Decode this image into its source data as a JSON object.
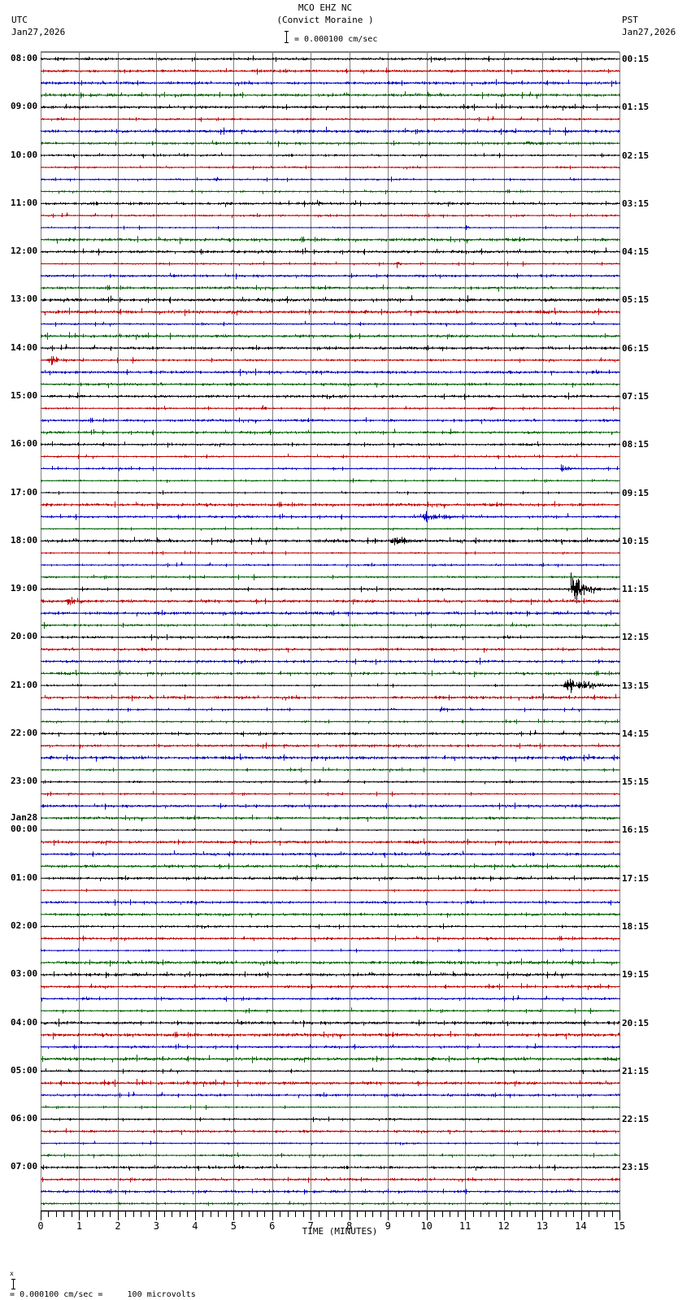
{
  "header": {
    "station": "MCO EHZ NC",
    "location": "(Convict Moraine )",
    "scale_text": "= 0.000100 cm/sec",
    "left_timezone": "UTC",
    "left_date": "Jan27,2026",
    "right_timezone": "PST",
    "right_date": "Jan27,2026"
  },
  "footer": {
    "scale_text": "= 0.000100 cm/sec =     100 microvolts",
    "prefix": "x"
  },
  "colors": {
    "trace_cycle": [
      "#000000",
      "#c00000",
      "#0000c0",
      "#006000"
    ],
    "gridline": "#808080",
    "axis": "#000000"
  },
  "chart_data": {
    "type": "line",
    "title": "MCO EHZ NC (Convict Moraine ) — helicorder, Jan27,2026",
    "xlabel": "TIME (MINUTES)",
    "ylabel": "",
    "x_range": [
      0,
      15
    ],
    "x_ticks": [
      "0",
      "1",
      "2",
      "3",
      "4",
      "5",
      "6",
      "7",
      "8",
      "9",
      "10",
      "11",
      "12",
      "13",
      "14",
      "15"
    ],
    "minor_ticks_per_minute": 4,
    "grid": true,
    "traces_per_hour": 4,
    "minutes_per_trace": 15,
    "trace_count": 96,
    "amplitude_scale": "0.000100 cm/sec = 100 microvolts",
    "left_labels": [
      {
        "row": 0,
        "text": "08:00"
      },
      {
        "row": 4,
        "text": "09:00"
      },
      {
        "row": 8,
        "text": "10:00"
      },
      {
        "row": 12,
        "text": "11:00"
      },
      {
        "row": 16,
        "text": "12:00"
      },
      {
        "row": 20,
        "text": "13:00"
      },
      {
        "row": 24,
        "text": "14:00"
      },
      {
        "row": 28,
        "text": "15:00"
      },
      {
        "row": 32,
        "text": "16:00"
      },
      {
        "row": 36,
        "text": "17:00"
      },
      {
        "row": 40,
        "text": "18:00"
      },
      {
        "row": 44,
        "text": "19:00"
      },
      {
        "row": 48,
        "text": "20:00"
      },
      {
        "row": 52,
        "text": "21:00"
      },
      {
        "row": 56,
        "text": "22:00"
      },
      {
        "row": 60,
        "text": "23:00"
      },
      {
        "row": 64,
        "text": "00:00",
        "date": "Jan28"
      },
      {
        "row": 68,
        "text": "01:00"
      },
      {
        "row": 72,
        "text": "02:00"
      },
      {
        "row": 76,
        "text": "03:00"
      },
      {
        "row": 80,
        "text": "04:00"
      },
      {
        "row": 84,
        "text": "05:00"
      },
      {
        "row": 88,
        "text": "06:00"
      },
      {
        "row": 92,
        "text": "07:00"
      }
    ],
    "right_labels": [
      {
        "row": 0,
        "text": "00:15"
      },
      {
        "row": 4,
        "text": "01:15"
      },
      {
        "row": 8,
        "text": "02:15"
      },
      {
        "row": 12,
        "text": "03:15"
      },
      {
        "row": 16,
        "text": "04:15"
      },
      {
        "row": 20,
        "text": "05:15"
      },
      {
        "row": 24,
        "text": "06:15"
      },
      {
        "row": 28,
        "text": "07:15"
      },
      {
        "row": 32,
        "text": "08:15"
      },
      {
        "row": 36,
        "text": "09:15"
      },
      {
        "row": 40,
        "text": "10:15"
      },
      {
        "row": 44,
        "text": "11:15"
      },
      {
        "row": 48,
        "text": "12:15"
      },
      {
        "row": 52,
        "text": "13:15"
      },
      {
        "row": 56,
        "text": "14:15"
      },
      {
        "row": 60,
        "text": "15:15"
      },
      {
        "row": 64,
        "text": "16:15"
      },
      {
        "row": 68,
        "text": "17:15"
      },
      {
        "row": 72,
        "text": "18:15"
      },
      {
        "row": 76,
        "text": "19:15"
      },
      {
        "row": 80,
        "text": "20:15"
      },
      {
        "row": 84,
        "text": "21:15"
      },
      {
        "row": 88,
        "text": "22:15"
      },
      {
        "row": 92,
        "text": "23:15"
      }
    ],
    "events": [
      {
        "row": 25,
        "minute": 0.15,
        "duration": 0.6,
        "amplitude": 10
      },
      {
        "row": 38,
        "minute": 9.7,
        "duration": 1.6,
        "amplitude": 7
      },
      {
        "row": 40,
        "minute": 9.0,
        "duration": 1.2,
        "amplitude": 7
      },
      {
        "row": 40,
        "minute": 7.2,
        "duration": 3.0,
        "amplitude": 3
      },
      {
        "row": 34,
        "minute": 13.4,
        "duration": 0.7,
        "amplitude": 6
      },
      {
        "row": 44,
        "minute": 13.65,
        "duration": 0.9,
        "amplitude": 30
      },
      {
        "row": 45,
        "minute": 0.6,
        "duration": 0.9,
        "amplitude": 8
      },
      {
        "row": 52,
        "minute": 13.5,
        "duration": 1.6,
        "amplitude": 12
      },
      {
        "row": 54,
        "minute": 10.3,
        "duration": 0.5,
        "amplitude": 5
      },
      {
        "row": 57,
        "minute": 8.3,
        "duration": 1.2,
        "amplitude": 3
      },
      {
        "row": 58,
        "minute": 13.4,
        "duration": 0.7,
        "amplitude": 6
      },
      {
        "row": 58,
        "minute": 14.1,
        "duration": 0.5,
        "amplitude": 5
      },
      {
        "row": 7,
        "minute": 12.2,
        "duration": 2.8,
        "amplitude": 3
      },
      {
        "row": 12,
        "minute": 7.0,
        "duration": 1.2,
        "amplitude": 3
      },
      {
        "row": 14,
        "minute": 11.0,
        "duration": 0.2,
        "amplitude": 6
      },
      {
        "row": 17,
        "minute": 9.2,
        "duration": 0.2,
        "amplitude": 7
      },
      {
        "row": 29,
        "minute": 5.7,
        "duration": 0.3,
        "amplitude": 5
      },
      {
        "row": 29,
        "minute": 11.4,
        "duration": 1.2,
        "amplitude": 3
      },
      {
        "row": 10,
        "minute": 4.5,
        "duration": 0.3,
        "amplitude": 4
      }
    ]
  }
}
